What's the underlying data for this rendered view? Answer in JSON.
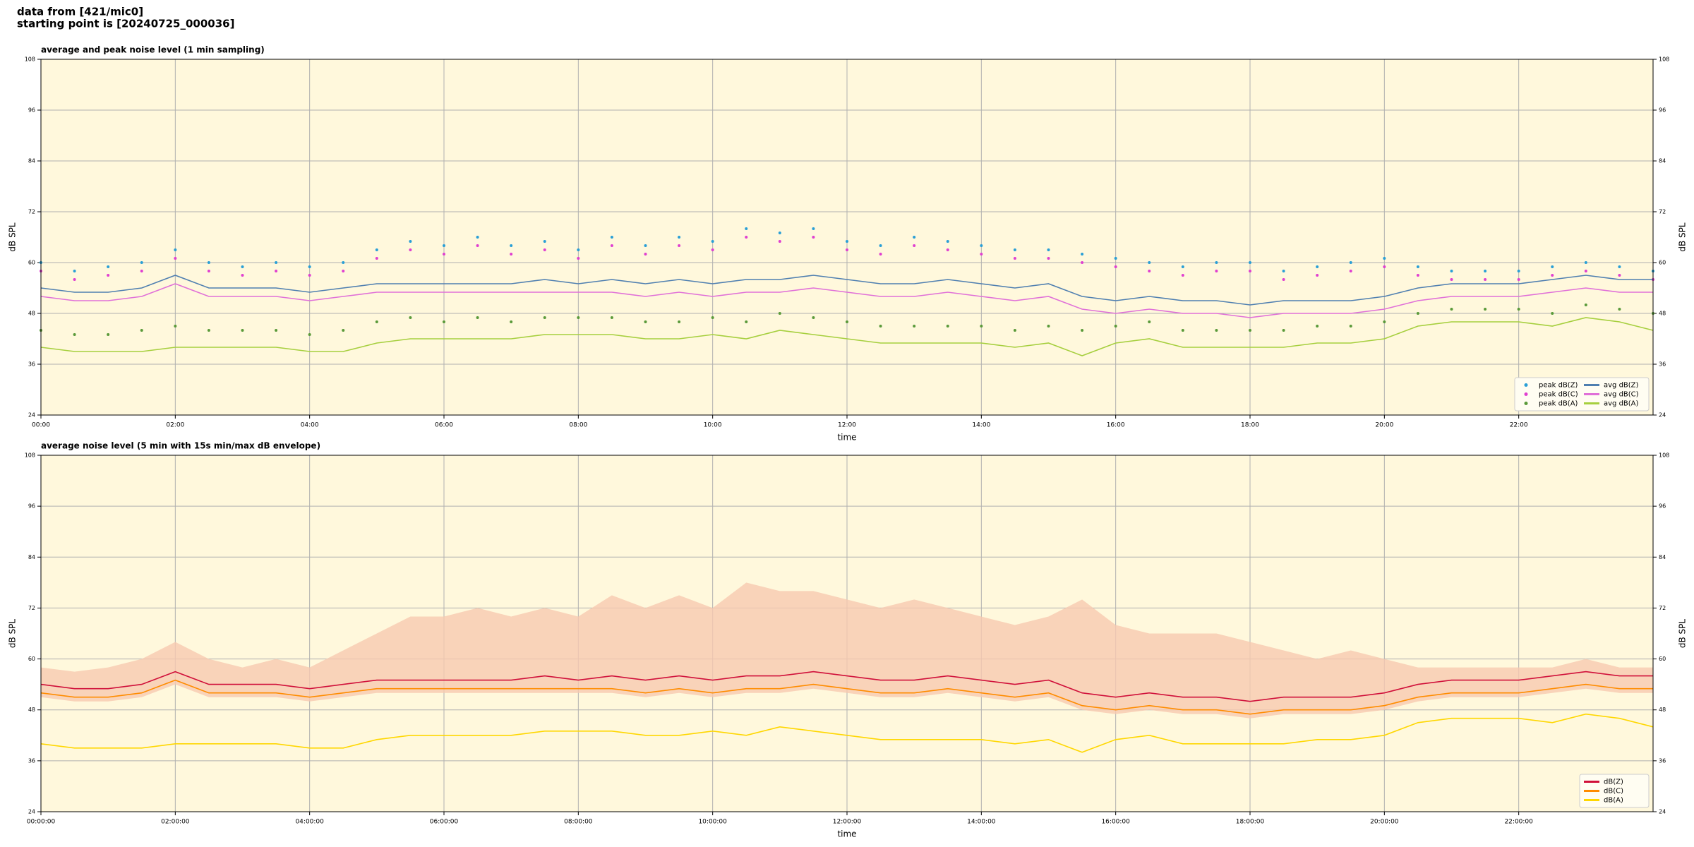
{
  "header": [
    "data from [421/mic0]",
    "starting point is [20240725_000036]"
  ],
  "chart_data": [
    {
      "type": "line",
      "title": "average and peak noise level (1 min sampling)",
      "xlabel": "time",
      "ylabel": "dB SPL",
      "y2label": "dB SPL",
      "xlim": [
        0,
        24
      ],
      "xticks": [
        {
          "value": 0,
          "label": "00:00"
        },
        {
          "value": 2,
          "label": "02:00"
        },
        {
          "value": 4,
          "label": "04:00"
        },
        {
          "value": 6,
          "label": "06:00"
        },
        {
          "value": 8,
          "label": "08:00"
        },
        {
          "value": 10,
          "label": "10:00"
        },
        {
          "value": 12,
          "label": "12:00"
        },
        {
          "value": 14,
          "label": "14:00"
        },
        {
          "value": 16,
          "label": "16:00"
        },
        {
          "value": 18,
          "label": "18:00"
        },
        {
          "value": 20,
          "label": "20:00"
        },
        {
          "value": 22,
          "label": "22:00"
        }
      ],
      "ylim": [
        24,
        108
      ],
      "yticks": [
        24,
        36,
        48,
        60,
        72,
        84,
        96,
        108
      ],
      "y2lim": [
        24,
        108
      ],
      "y2ticks": [
        24,
        36,
        48,
        60,
        72,
        84,
        96,
        108
      ],
      "grid": true,
      "legend": "lower right",
      "x": [
        0,
        0.5,
        1,
        1.5,
        2,
        2.5,
        3,
        3.5,
        4,
        4.5,
        5,
        5.5,
        6,
        6.5,
        7,
        7.5,
        8,
        8.5,
        9,
        9.5,
        10,
        10.5,
        11,
        11.5,
        12,
        12.5,
        13,
        13.5,
        14,
        14.5,
        15,
        15.5,
        16,
        16.5,
        17,
        17.5,
        18,
        18.5,
        19,
        19.5,
        20,
        20.5,
        21,
        21.5,
        22,
        22.5,
        23,
        23.5,
        24
      ],
      "series": [
        {
          "name": "peak dB(Z)",
          "kind": "scatter",
          "color": "#2a9fd6",
          "values": [
            60,
            58,
            59,
            60,
            63,
            60,
            59,
            60,
            59,
            60,
            63,
            65,
            64,
            66,
            64,
            65,
            63,
            66,
            64,
            66,
            65,
            68,
            67,
            68,
            65,
            64,
            66,
            65,
            64,
            63,
            63,
            62,
            61,
            60,
            59,
            60,
            60,
            58,
            59,
            60,
            61,
            59,
            58,
            58,
            58,
            59,
            60,
            59,
            58
          ]
        },
        {
          "name": "peak dB(C)",
          "kind": "scatter",
          "color": "#e040d0",
          "values": [
            58,
            56,
            57,
            58,
            61,
            58,
            57,
            58,
            57,
            58,
            61,
            63,
            62,
            64,
            62,
            63,
            61,
            64,
            62,
            64,
            63,
            66,
            65,
            66,
            63,
            62,
            64,
            63,
            62,
            61,
            61,
            60,
            59,
            58,
            57,
            58,
            58,
            56,
            57,
            58,
            59,
            57,
            56,
            56,
            56,
            57,
            58,
            57,
            56
          ]
        },
        {
          "name": "peak dB(A)",
          "kind": "scatter",
          "color": "#5a9a3a",
          "values": [
            44,
            43,
            43,
            44,
            45,
            44,
            44,
            44,
            43,
            44,
            46,
            47,
            46,
            47,
            46,
            47,
            47,
            47,
            46,
            46,
            47,
            46,
            48,
            47,
            46,
            45,
            45,
            45,
            45,
            44,
            45,
            44,
            45,
            46,
            44,
            44,
            44,
            44,
            45,
            45,
            46,
            48,
            49,
            49,
            49,
            48,
            50,
            49,
            48
          ]
        },
        {
          "name": "avg dB(Z)",
          "kind": "line",
          "color": "#4f7fb0",
          "values": [
            54,
            53,
            53,
            54,
            57,
            54,
            54,
            54,
            53,
            54,
            55,
            55,
            55,
            55,
            55,
            56,
            55,
            56,
            55,
            56,
            55,
            56,
            56,
            57,
            56,
            55,
            55,
            56,
            55,
            54,
            55,
            52,
            51,
            52,
            51,
            51,
            50,
            51,
            51,
            51,
            52,
            54,
            55,
            55,
            55,
            56,
            57,
            56,
            56
          ]
        },
        {
          "name": "avg dB(C)",
          "kind": "line",
          "color": "#e070d8",
          "values": [
            52,
            51,
            51,
            52,
            55,
            52,
            52,
            52,
            51,
            52,
            53,
            53,
            53,
            53,
            53,
            53,
            53,
            53,
            52,
            53,
            52,
            53,
            53,
            54,
            53,
            52,
            52,
            53,
            52,
            51,
            52,
            49,
            48,
            49,
            48,
            48,
            47,
            48,
            48,
            48,
            49,
            51,
            52,
            52,
            52,
            53,
            54,
            53,
            53
          ]
        },
        {
          "name": "avg dB(A)",
          "kind": "line",
          "color": "#a6cf3e",
          "values": [
            40,
            39,
            39,
            39,
            40,
            40,
            40,
            40,
            39,
            39,
            41,
            42,
            42,
            42,
            42,
            43,
            43,
            43,
            42,
            42,
            43,
            42,
            44,
            43,
            42,
            41,
            41,
            41,
            41,
            40,
            41,
            38,
            41,
            42,
            40,
            40,
            40,
            40,
            41,
            41,
            42,
            45,
            46,
            46,
            46,
            45,
            47,
            46,
            44
          ]
        }
      ]
    },
    {
      "type": "line",
      "title": "average noise level (5 min with 15s min/max dB envelope)",
      "xlabel": "time",
      "ylabel": "dB SPL",
      "y2label": "dB SPL",
      "xlim": [
        0,
        24
      ],
      "xticks": [
        {
          "value": 0,
          "label": "00:00:00"
        },
        {
          "value": 2,
          "label": "02:00:00"
        },
        {
          "value": 4,
          "label": "04:00:00"
        },
        {
          "value": 6,
          "label": "06:00:00"
        },
        {
          "value": 8,
          "label": "08:00:00"
        },
        {
          "value": 10,
          "label": "10:00:00"
        },
        {
          "value": 12,
          "label": "12:00:00"
        },
        {
          "value": 14,
          "label": "14:00:00"
        },
        {
          "value": 16,
          "label": "16:00:00"
        },
        {
          "value": 18,
          "label": "18:00:00"
        },
        {
          "value": 20,
          "label": "20:00:00"
        },
        {
          "value": 22,
          "label": "22:00:00"
        }
      ],
      "ylim": [
        24,
        108
      ],
      "yticks": [
        24,
        36,
        48,
        60,
        72,
        84,
        96,
        108
      ],
      "y2lim": [
        24,
        108
      ],
      "y2ticks": [
        24,
        36,
        48,
        60,
        72,
        84,
        96,
        108
      ],
      "grid": true,
      "legend": "lower right",
      "x": [
        0,
        0.5,
        1,
        1.5,
        2,
        2.5,
        3,
        3.5,
        4,
        4.5,
        5,
        5.5,
        6,
        6.5,
        7,
        7.5,
        8,
        8.5,
        9,
        9.5,
        10,
        10.5,
        11,
        11.5,
        12,
        12.5,
        13,
        13.5,
        14,
        14.5,
        15,
        15.5,
        16,
        16.5,
        17,
        17.5,
        18,
        18.5,
        19,
        19.5,
        20,
        20.5,
        21,
        21.5,
        22,
        22.5,
        23,
        23.5,
        24
      ],
      "envelope": {
        "color": "#f7c9b0",
        "upper": [
          58,
          57,
          58,
          60,
          64,
          60,
          58,
          60,
          58,
          62,
          66,
          70,
          70,
          72,
          70,
          72,
          70,
          75,
          72,
          75,
          72,
          78,
          76,
          76,
          74,
          72,
          74,
          72,
          70,
          68,
          70,
          74,
          68,
          66,
          66,
          66,
          64,
          62,
          60,
          62,
          60,
          58,
          58,
          58,
          58,
          58,
          60,
          58,
          58
        ],
        "lower": [
          51,
          50,
          50,
          51,
          54,
          51,
          51,
          51,
          50,
          51,
          52,
          52,
          52,
          52,
          52,
          52,
          52,
          52,
          51,
          52,
          51,
          52,
          52,
          53,
          52,
          51,
          51,
          52,
          51,
          50,
          51,
          48,
          47,
          48,
          47,
          47,
          46,
          47,
          47,
          47,
          48,
          50,
          51,
          51,
          51,
          52,
          53,
          52,
          52
        ]
      },
      "series": [
        {
          "name": "dB(Z)",
          "kind": "line",
          "color": "#d0103a",
          "values": [
            54,
            53,
            53,
            54,
            57,
            54,
            54,
            54,
            53,
            54,
            55,
            55,
            55,
            55,
            55,
            56,
            55,
            56,
            55,
            56,
            55,
            56,
            56,
            57,
            56,
            55,
            55,
            56,
            55,
            54,
            55,
            52,
            51,
            52,
            51,
            51,
            50,
            51,
            51,
            51,
            52,
            54,
            55,
            55,
            55,
            56,
            57,
            56,
            56
          ]
        },
        {
          "name": "dB(C)",
          "kind": "line",
          "color": "#ff8c00",
          "values": [
            52,
            51,
            51,
            52,
            55,
            52,
            52,
            52,
            51,
            52,
            53,
            53,
            53,
            53,
            53,
            53,
            53,
            53,
            52,
            53,
            52,
            53,
            53,
            54,
            53,
            52,
            52,
            53,
            52,
            51,
            52,
            49,
            48,
            49,
            48,
            48,
            47,
            48,
            48,
            48,
            49,
            51,
            52,
            52,
            52,
            53,
            54,
            53,
            53
          ]
        },
        {
          "name": "dB(A)",
          "kind": "line",
          "color": "#ffd700",
          "values": [
            40,
            39,
            39,
            39,
            40,
            40,
            40,
            40,
            39,
            39,
            41,
            42,
            42,
            42,
            42,
            43,
            43,
            43,
            42,
            42,
            43,
            42,
            44,
            43,
            42,
            41,
            41,
            41,
            41,
            40,
            41,
            38,
            41,
            42,
            40,
            40,
            40,
            40,
            41,
            41,
            42,
            45,
            46,
            46,
            46,
            45,
            47,
            46,
            44
          ]
        }
      ]
    }
  ]
}
